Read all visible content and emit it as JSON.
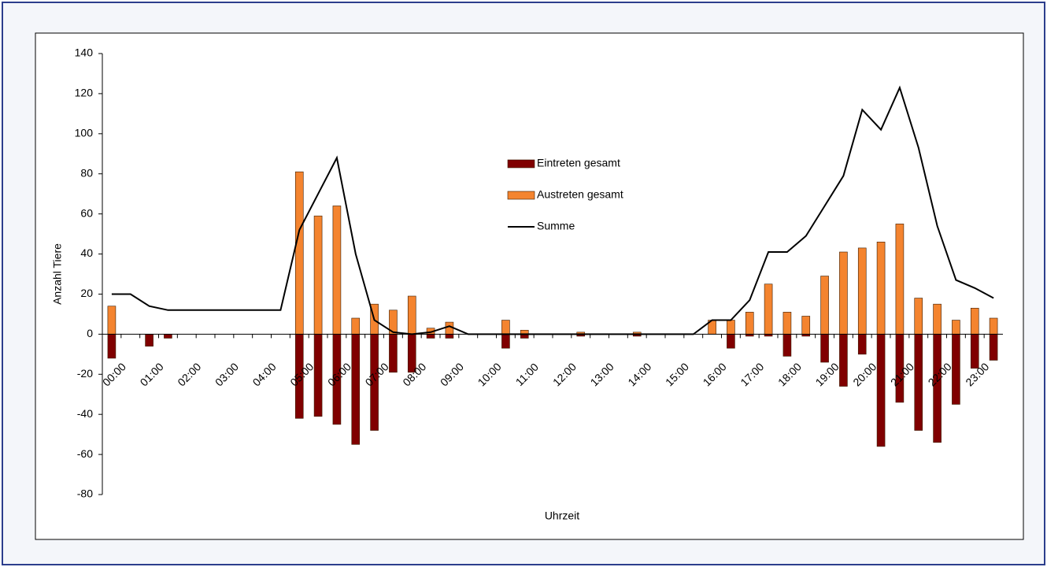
{
  "chart_data": {
    "type": "bar",
    "x_label": "Uhrzeit",
    "y_label": "Anzahl Tiere",
    "categories": [
      "00:00",
      null,
      "01:00",
      null,
      "02:00",
      null,
      "03:00",
      null,
      "04:00",
      null,
      "05:00",
      null,
      "06:00",
      null,
      "07:00",
      null,
      "08:00",
      null,
      "09:00",
      null,
      "10:00",
      null,
      "11:00",
      null,
      "12:00",
      null,
      "13:00",
      null,
      "14:00",
      null,
      "15:00",
      null,
      "16:00",
      null,
      "17:00",
      null,
      "18:00",
      null,
      "19:00",
      null,
      "20:00",
      null,
      "21:00",
      null,
      "22:00",
      null,
      "23:00",
      null
    ],
    "series": [
      {
        "name": "Eintreten gesamt",
        "type": "bar",
        "color": "#800000",
        "values": [
          -12,
          0,
          -6,
          -2,
          0,
          0,
          0,
          0,
          0,
          0,
          -42,
          -41,
          -45,
          -55,
          -48,
          -19,
          -19,
          -2,
          -2,
          0,
          0,
          -7,
          -2,
          0,
          0,
          -1,
          0,
          0,
          -1,
          0,
          0,
          0,
          0,
          -7,
          -1,
          -1,
          -11,
          -1,
          -14,
          -26,
          -10,
          -56,
          -34,
          -48,
          -54,
          -35,
          -17,
          -13
        ]
      },
      {
        "name": "Austreten gesamt",
        "type": "bar",
        "color": "#f4842f",
        "values": [
          14,
          0,
          0,
          0,
          0,
          0,
          0,
          0,
          0,
          0,
          81,
          59,
          64,
          8,
          15,
          12,
          19,
          3,
          6,
          0,
          0,
          7,
          2,
          0,
          0,
          1,
          0,
          0,
          1,
          0,
          0,
          0,
          7,
          7,
          11,
          25,
          11,
          9,
          29,
          41,
          43,
          46,
          55,
          18,
          15,
          7,
          13,
          8
        ]
      },
      {
        "name": "Summe",
        "type": "line",
        "color": "#000000",
        "values": [
          20,
          20,
          14,
          12,
          12,
          12,
          12,
          12,
          12,
          12,
          52,
          70,
          88,
          40,
          7,
          1,
          0,
          1,
          4,
          0,
          0,
          0,
          0,
          0,
          0,
          0,
          0,
          0,
          0,
          0,
          0,
          0,
          7,
          7,
          17,
          41,
          41,
          49,
          64,
          79,
          112,
          102,
          123,
          93,
          54,
          27,
          23,
          18
        ]
      }
    ],
    "ylim": [
      -80,
      140
    ],
    "yticks": [
      -80,
      -60,
      -40,
      -20,
      0,
      20,
      40,
      60,
      80,
      100,
      120,
      140
    ],
    "grid": false
  }
}
